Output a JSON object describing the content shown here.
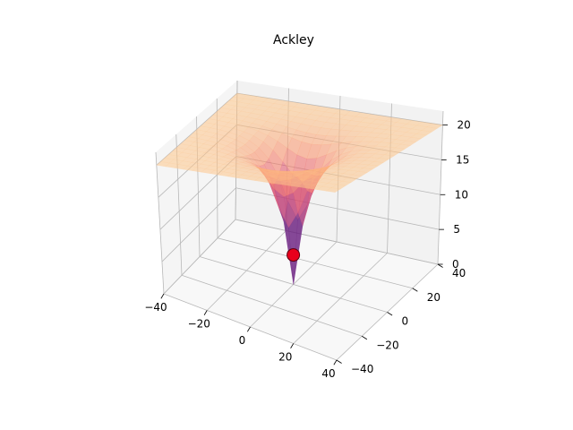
{
  "chart_data": {
    "type": "surface3d",
    "title": "Ackley",
    "function": "ackley",
    "xlim": [
      -40,
      40
    ],
    "ylim": [
      -40,
      40
    ],
    "zlim": [
      0,
      22
    ],
    "x_ticks": [
      -40,
      -20,
      0,
      20,
      40
    ],
    "y_ticks": [
      -40,
      -20,
      0,
      20,
      40
    ],
    "z_ticks": [
      0,
      5,
      10,
      15,
      20
    ],
    "grid": true,
    "colormap": "magma",
    "surface_alpha": 0.55,
    "marker": {
      "x": 0,
      "y": 0,
      "z": 0,
      "color": "#e8001c"
    }
  }
}
